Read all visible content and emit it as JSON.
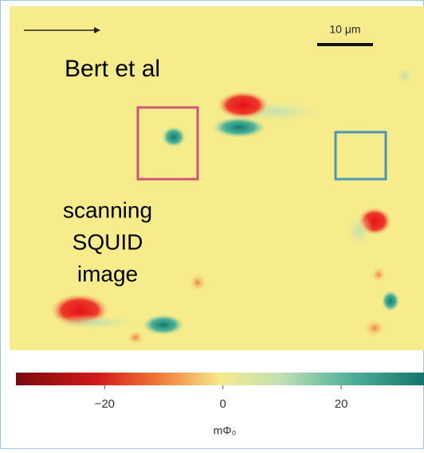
{
  "figure": {
    "scale_bar": "10 μm",
    "credit": "Bert et al",
    "caption_lines": [
      "scanning",
      "SQUID",
      "image"
    ],
    "colorbar": {
      "lim": [
        -35,
        34
      ],
      "ticks": [
        {
          "value": -20,
          "label": "−20"
        },
        0,
        20
      ],
      "unit": "mΦ₀"
    }
  }
}
